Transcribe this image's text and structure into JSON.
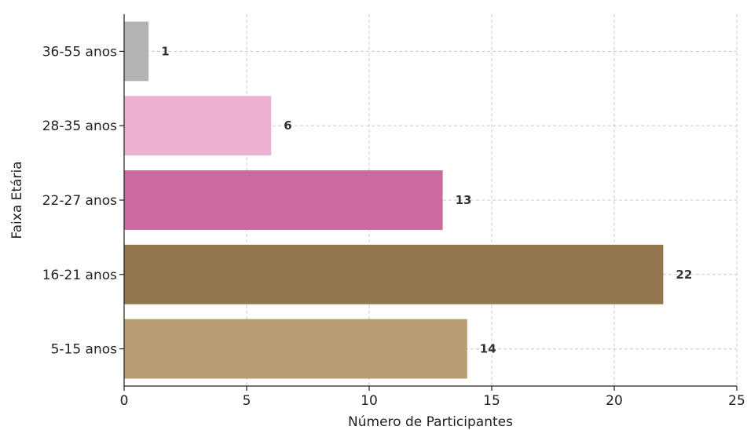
{
  "chart_data": {
    "type": "bar",
    "orientation": "horizontal",
    "title": "",
    "xlabel": "Número de Participantes",
    "ylabel": "Faixa Etária",
    "xlim": [
      0,
      25
    ],
    "xticks": [
      "0",
      "5",
      "10",
      "15",
      "20",
      "25"
    ],
    "grid": true,
    "categories": [
      "36-55 anos",
      "28-35 anos",
      "22-27 anos",
      "16-21 anos",
      "5-15 anos"
    ],
    "values": [
      1,
      6,
      13,
      22,
      14
    ],
    "data_labels": [
      "1",
      "6",
      "13",
      "22",
      "14"
    ],
    "colors": [
      "#b3b3b3",
      "#ecb1d2",
      "#cc6a9f",
      "#93764e",
      "#b89d73"
    ]
  }
}
